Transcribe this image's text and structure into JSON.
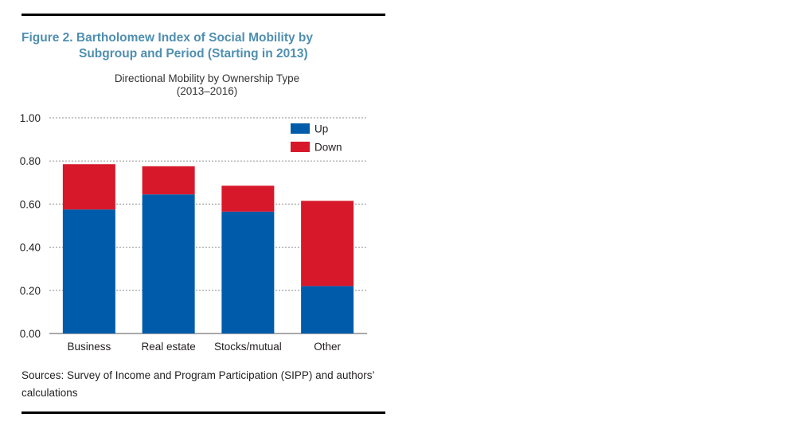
{
  "figure": {
    "title_line1": "Figure 2. Bartholomew Index of Social Mobility by",
    "title_line2": "Subgroup and Period (Starting in 2013)"
  },
  "chart_data": {
    "type": "bar",
    "stacked": true,
    "title": "Directional Mobility by Ownership Type",
    "subtitle": "(2013–2016)",
    "categories": [
      "Business",
      "Real estate",
      "Stocks/mutual",
      "Other"
    ],
    "series": [
      {
        "name": "Up",
        "color": "#005baa",
        "values": [
          0.575,
          0.645,
          0.565,
          0.22
        ]
      },
      {
        "name": "Down",
        "color": "#d7182a",
        "values": [
          0.21,
          0.13,
          0.12,
          0.395
        ]
      }
    ],
    "ylim": [
      0,
      1
    ],
    "yticks": [
      "0.00",
      "0.20",
      "0.40",
      "0.60",
      "0.80",
      "1.00"
    ],
    "grid": true,
    "legend_position": "top-right"
  },
  "sources": {
    "text": "Sources: Survey of Income and Program Participation (SIPP) and authors’ calculations"
  }
}
